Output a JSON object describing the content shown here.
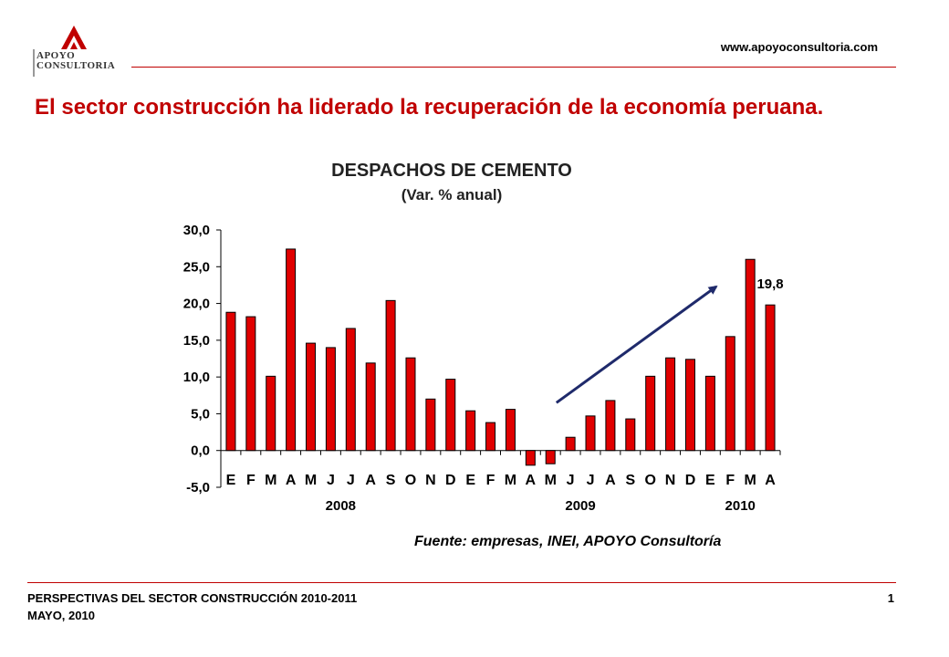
{
  "header": {
    "logo_line1": "APOYO",
    "logo_line2": "CONSULTORIA",
    "website": "www.apoyoconsultoria.com"
  },
  "headline": "El sector construcción ha liderado la recuperación de la economía peruana.",
  "chart_data": {
    "type": "bar",
    "title": "DESPACHOS DE CEMENTO",
    "subtitle": "(Var. % anual)",
    "categories": [
      "E",
      "F",
      "M",
      "A",
      "M",
      "J",
      "J",
      "A",
      "S",
      "O",
      "N",
      "D",
      "E",
      "F",
      "M",
      "A",
      "M",
      "J",
      "J",
      "A",
      "S",
      "O",
      "N",
      "D",
      "E",
      "F",
      "M",
      "A"
    ],
    "values": [
      18.8,
      18.2,
      10.1,
      27.4,
      14.6,
      14.0,
      16.6,
      11.9,
      20.4,
      12.6,
      7.0,
      9.7,
      5.4,
      3.8,
      5.6,
      -2.0,
      -1.8,
      1.8,
      4.7,
      6.8,
      4.3,
      10.1,
      12.6,
      12.4,
      10.1,
      15.5,
      26.0,
      19.8
    ],
    "years": [
      {
        "label": "2008",
        "start_index": 0,
        "end_index": 11
      },
      {
        "label": "2009",
        "start_index": 12,
        "end_index": 23
      },
      {
        "label": "2010",
        "start_index": 24,
        "end_index": 27
      }
    ],
    "ylim": [
      -5,
      30
    ],
    "yticks": [
      "30,0",
      "25,0",
      "20,0",
      "15,0",
      "10,0",
      "5,0",
      "0,0",
      "-5,0"
    ],
    "ytick_values": [
      30,
      25,
      20,
      15,
      10,
      5,
      0,
      -5
    ],
    "data_label": {
      "index": 27,
      "text": "19,8"
    },
    "trend_arrow": {
      "from": {
        "index": 16.8,
        "value": 6.5
      },
      "to": {
        "index": 24.8,
        "value": 22.3
      }
    },
    "bar_color": "#e00000",
    "arrow_color": "#1f2a6b",
    "grid": false,
    "legend": "none"
  },
  "source": "Fuente: empresas, INEI, APOYO Consultoría",
  "footer": {
    "line1": "PERSPECTIVAS DEL SECTOR CONSTRUCCIÓN 2010-2011",
    "line2": "MAYO, 2010",
    "page": "1"
  }
}
